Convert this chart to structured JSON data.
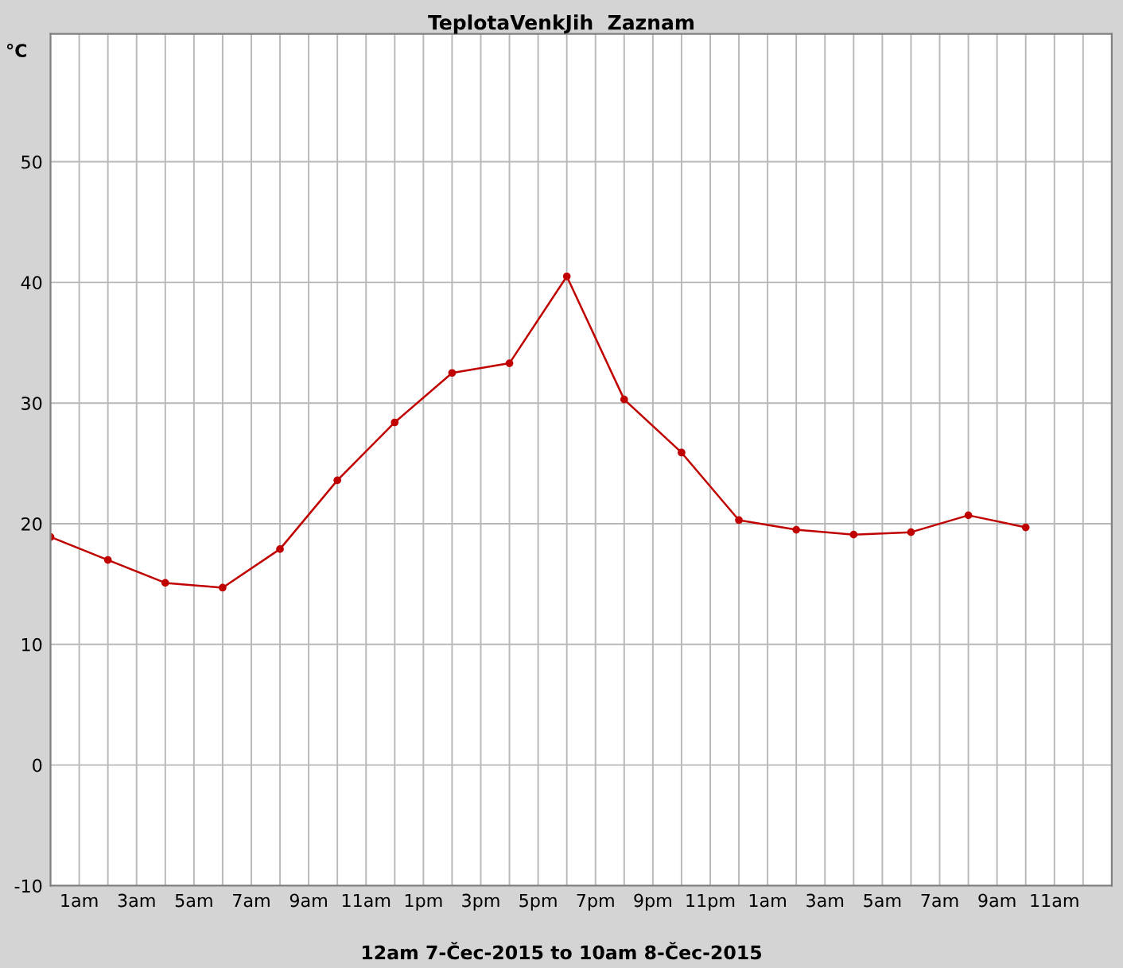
{
  "chart_data": {
    "type": "line",
    "title": "TeplotaVenkJih  Zaznam",
    "ylabel": "°C",
    "xlabel": "12am 7-Čec-2015 to 10am 8-Čec-2015",
    "x": [
      "2015-07-07T00:00",
      "2015-07-07T02:00",
      "2015-07-07T04:00",
      "2015-07-07T06:00",
      "2015-07-07T08:00",
      "2015-07-07T10:00",
      "2015-07-07T12:00",
      "2015-07-07T14:00",
      "2015-07-07T16:00",
      "2015-07-07T18:00",
      "2015-07-07T20:00",
      "2015-07-07T22:00",
      "2015-07-08T00:00",
      "2015-07-08T02:00",
      "2015-07-08T04:00",
      "2015-07-08T06:00",
      "2015-07-08T08:00",
      "2015-07-08T10:00"
    ],
    "series": [
      {
        "color": "#c00000",
        "values": [
          18.9,
          17.0,
          15.1,
          14.7,
          17.9,
          23.6,
          28.4,
          32.5,
          33.3,
          40.5,
          30.3,
          25.9,
          20.3,
          19.5,
          19.1,
          19.3,
          20.7,
          19.7
        ]
      }
    ],
    "xlim": [
      "2015-07-07T00:00",
      "2015-07-08T13:00"
    ],
    "ylim": [
      -10,
      60.6
    ],
    "xticks": [
      {
        "value": "2015-07-07T01:00",
        "label": "1am"
      },
      {
        "value": "2015-07-07T02:00",
        "label": null
      },
      {
        "value": "2015-07-07T03:00",
        "label": "3am"
      },
      {
        "value": "2015-07-07T04:00",
        "label": null
      },
      {
        "value": "2015-07-07T05:00",
        "label": "5am"
      },
      {
        "value": "2015-07-07T06:00",
        "label": null
      },
      {
        "value": "2015-07-07T07:00",
        "label": "7am"
      },
      {
        "value": "2015-07-07T08:00",
        "label": null
      },
      {
        "value": "2015-07-07T09:00",
        "label": "9am"
      },
      {
        "value": "2015-07-07T10:00",
        "label": null
      },
      {
        "value": "2015-07-07T11:00",
        "label": "11am"
      },
      {
        "value": "2015-07-07T12:00",
        "label": null
      },
      {
        "value": "2015-07-07T13:00",
        "label": "1pm"
      },
      {
        "value": "2015-07-07T14:00",
        "label": null
      },
      {
        "value": "2015-07-07T15:00",
        "label": "3pm"
      },
      {
        "value": "2015-07-07T16:00",
        "label": null
      },
      {
        "value": "2015-07-07T17:00",
        "label": "5pm"
      },
      {
        "value": "2015-07-07T18:00",
        "label": null
      },
      {
        "value": "2015-07-07T19:00",
        "label": "7pm"
      },
      {
        "value": "2015-07-07T20:00",
        "label": null
      },
      {
        "value": "2015-07-07T21:00",
        "label": "9pm"
      },
      {
        "value": "2015-07-07T22:00",
        "label": null
      },
      {
        "value": "2015-07-07T23:00",
        "label": "11pm"
      },
      {
        "value": "2015-07-08T00:00",
        "label": null
      },
      {
        "value": "2015-07-08T01:00",
        "label": "1am"
      },
      {
        "value": "2015-07-08T02:00",
        "label": null
      },
      {
        "value": "2015-07-08T03:00",
        "label": "3am"
      },
      {
        "value": "2015-07-08T04:00",
        "label": null
      },
      {
        "value": "2015-07-08T05:00",
        "label": "5am"
      },
      {
        "value": "2015-07-08T06:00",
        "label": null
      },
      {
        "value": "2015-07-08T07:00",
        "label": "7am"
      },
      {
        "value": "2015-07-08T08:00",
        "label": null
      },
      {
        "value": "2015-07-08T09:00",
        "label": "9am"
      },
      {
        "value": "2015-07-08T10:00",
        "label": null
      },
      {
        "value": "2015-07-08T11:00",
        "label": "11am"
      },
      {
        "value": "2015-07-08T12:00",
        "label": null
      }
    ],
    "yticks": [
      -10,
      0,
      10,
      20,
      30,
      40,
      50
    ],
    "grid": true,
    "marker": "circle",
    "line_style": "solid"
  }
}
